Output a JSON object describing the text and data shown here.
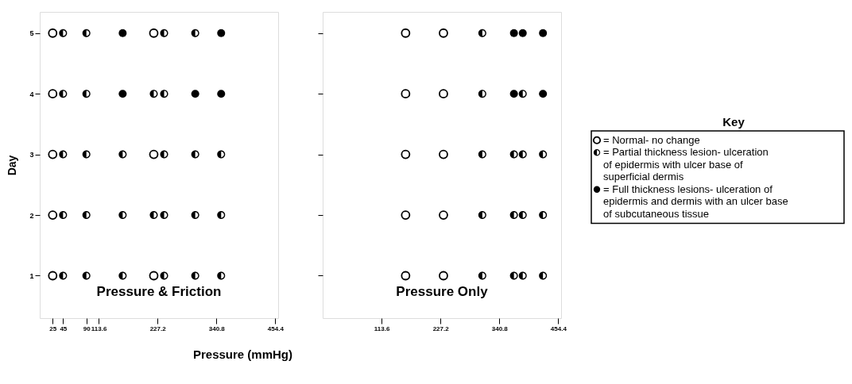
{
  "chart_data": [
    {
      "type": "scatter",
      "title": "Pressure & Friction",
      "xlabel": "Pressure (mmHg)",
      "ylabel": "Day",
      "xlim": [
        0,
        460
      ],
      "ylim": [
        0.3,
        5.35
      ],
      "xticks": [
        25,
        45,
        90,
        113.6,
        227.2,
        340.8,
        454.4
      ],
      "yticks": [
        1,
        2,
        3,
        4,
        5
      ],
      "grid": false,
      "legend": false,
      "series": [
        {
          "marker": "circle-open",
          "color": "#000000",
          "x": [
            25,
            220,
            25,
            25,
            220,
            25,
            25,
            220
          ],
          "values": [
            5,
            5,
            4,
            3,
            3,
            2,
            1,
            1
          ]
        },
        {
          "marker": "circle-half",
          "color": "#000000",
          "x": [
            45,
            90,
            240,
            300,
            45,
            90,
            220,
            240,
            45,
            90,
            160,
            240,
            300,
            350,
            45,
            90,
            160,
            220,
            240,
            300,
            350,
            45,
            90,
            160,
            240,
            300,
            350
          ],
          "values": [
            5,
            5,
            5,
            5,
            4,
            4,
            4,
            4,
            3,
            3,
            3,
            3,
            3,
            3,
            2,
            2,
            2,
            2,
            2,
            2,
            2,
            1,
            1,
            1,
            1,
            1,
            1
          ]
        },
        {
          "marker": "circle",
          "color": "#000000",
          "x": [
            160,
            350,
            160,
            300,
            350
          ],
          "values": [
            5,
            5,
            4,
            4,
            4
          ]
        }
      ]
    },
    {
      "type": "scatter",
      "title": "Pressure Only",
      "xlim": [
        0,
        460
      ],
      "ylim": [
        0.3,
        5.35
      ],
      "xticks": [
        113.6,
        227.2,
        340.8,
        454.4
      ],
      "yticks": [
        1,
        2,
        3,
        4,
        5
      ],
      "tick_labels": "x",
      "grid": false,
      "legend": "right",
      "legend_title": "Key",
      "series": [
        {
          "name": "= Normal- no change",
          "marker": "circle-open",
          "color": "#000000",
          "x": [
            160,
            233,
            160,
            233,
            160,
            233,
            160,
            233,
            160,
            233
          ],
          "values": [
            5,
            5,
            4,
            4,
            3,
            3,
            2,
            2,
            1,
            1
          ]
        },
        {
          "name": "= Partial thickness lesion- ulceration of epidermis with ulcer base of superficial dermis",
          "marker": "circle-half",
          "color": "#000000",
          "x": [
            308,
            308,
            386,
            308,
            369,
            386,
            425,
            308,
            369,
            386,
            425,
            308,
            369,
            386,
            425
          ],
          "values": [
            5,
            4,
            4,
            3,
            3,
            3,
            3,
            2,
            2,
            2,
            2,
            1,
            1,
            1,
            1
          ]
        },
        {
          "name": "= Full thickness lesions- ulceration of epidermis and dermis with an ulcer base of subcutaneous tissue",
          "marker": "circle",
          "color": "#000000",
          "x": [
            369,
            386,
            425,
            369,
            425
          ],
          "values": [
            5,
            5,
            5,
            4,
            4
          ]
        }
      ]
    }
  ]
}
